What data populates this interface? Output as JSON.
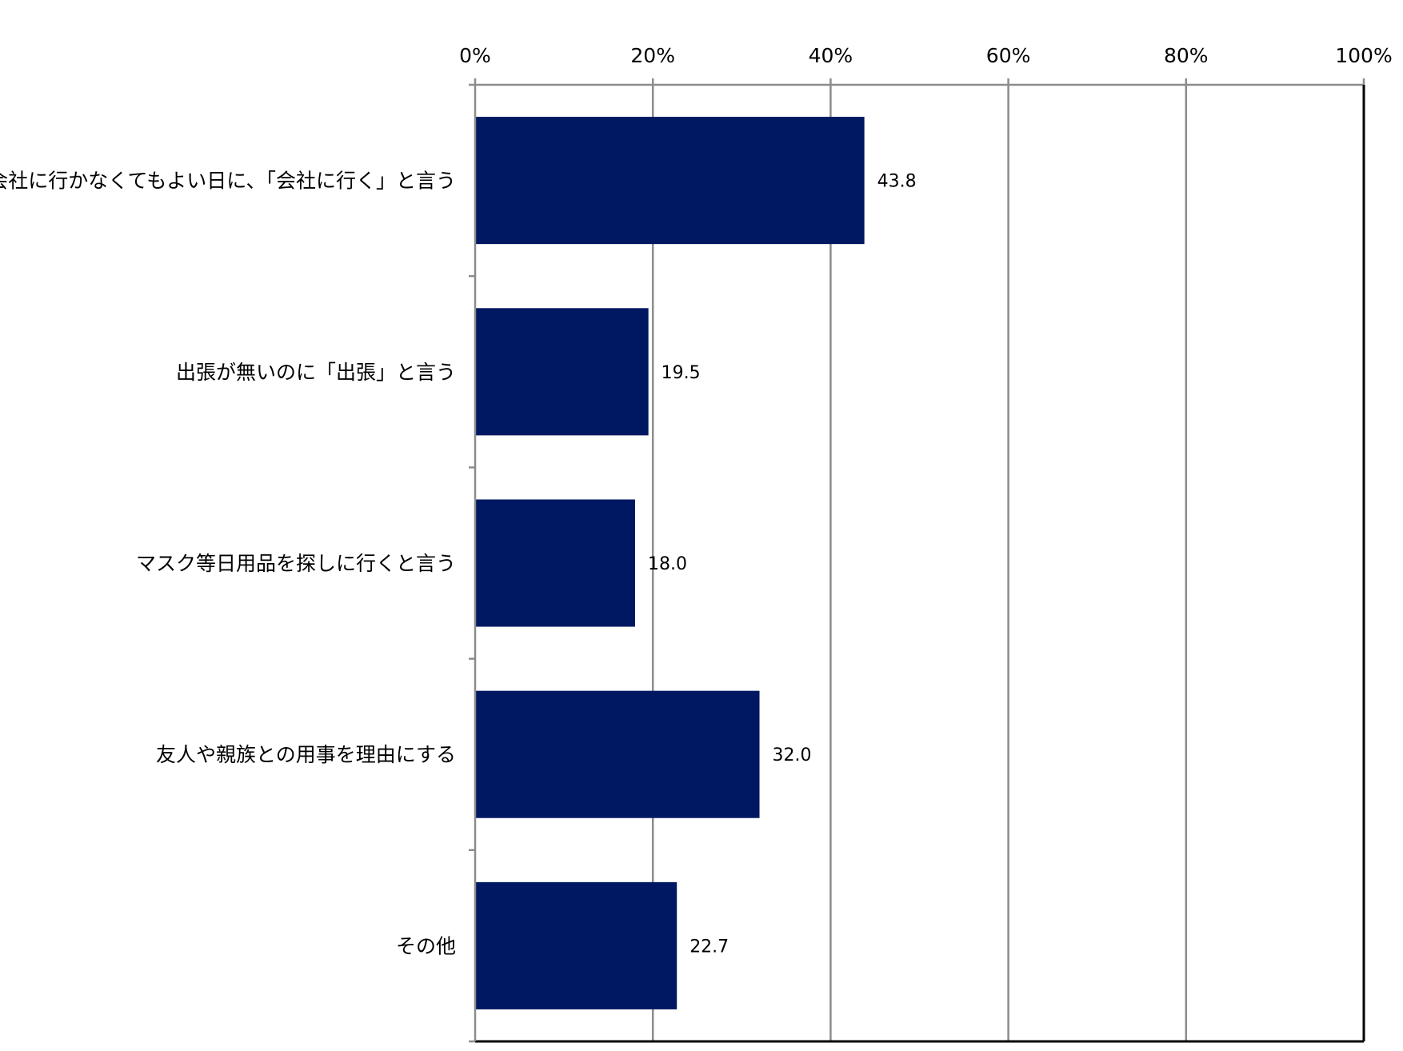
{
  "chart_data": {
    "type": "bar",
    "orientation": "horizontal",
    "categories": [
      "会社に行かなくてもよい日に、「会社に行く」と言う",
      "出張が無いのに「出張」と言う",
      "マスク等日用品を探しに行くと言う",
      "友人や親族との用事を理由にする",
      "その他"
    ],
    "values": [
      43.8,
      19.5,
      18.0,
      32.0,
      22.7
    ],
    "value_labels": [
      "43.8",
      "19.5",
      "18.0",
      "32.0",
      "22.7"
    ],
    "xlim": [
      0,
      100
    ],
    "xticks": [
      0,
      20,
      40,
      60,
      80,
      100
    ],
    "xtick_labels": [
      "0%",
      "20%",
      "40%",
      "60%",
      "80%",
      "100%"
    ],
    "x_axis_position": "top",
    "grid": true,
    "legend": "none",
    "colors": {
      "bar": "#001862",
      "grid": "#8c8c8c",
      "axis": "#8c8c8c",
      "frame": "#000000",
      "text": "#000000"
    }
  }
}
